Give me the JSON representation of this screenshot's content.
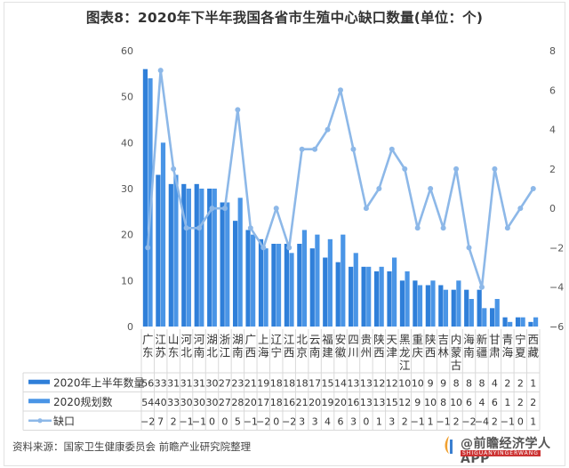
{
  "title": "图表8：2020年下半年我国各省市生殖中心缺口数量(单位：个)",
  "source": "资料来源：国家卫生健康委员会 前瞻产业研究院整理",
  "brand": {
    "text": "@前瞻经济学人APP",
    "sub": "SHIGUANYINGERWANG"
  },
  "colors": {
    "bar_h1": "#2f7fd9",
    "bar_plan": "#4a95e6",
    "line_gap": "#8db8e8",
    "grid": "#d9d9d9"
  },
  "legend": {
    "h1": "2020年上半年数量",
    "plan": "2020规划数",
    "gap": "缺口"
  },
  "chart_data": {
    "type": "bar+line",
    "title": "图表8：2020年下半年我国各省市生殖中心缺口数量(单位：个)",
    "categories": [
      "广东",
      "江苏",
      "山东",
      "河北",
      "河南",
      "湖北",
      "浙江",
      "湖南",
      "广西",
      "上海",
      "辽宁",
      "江西",
      "北京",
      "云南",
      "福建",
      "安徽",
      "四川",
      "贵州",
      "陕西",
      "天津",
      "黑龙江",
      "重庆",
      "陕西",
      "吉林",
      "内蒙古",
      "海南",
      "新疆",
      "甘肃",
      "青海",
      "宁夏",
      "西藏"
    ],
    "series": [
      {
        "name": "2020年上半年数量",
        "type": "bar",
        "axis": "left",
        "values": [
          56,
          33,
          31,
          31,
          31,
          30,
          27,
          23,
          21,
          19,
          18,
          18,
          18,
          17,
          15,
          14,
          13,
          13,
          12,
          12,
          10,
          10,
          9,
          9,
          8,
          8,
          8,
          4,
          2,
          2,
          1
        ]
      },
      {
        "name": "2020规划数",
        "type": "bar",
        "axis": "left",
        "values": [
          54,
          40,
          33,
          30,
          30,
          30,
          27,
          28,
          20,
          17,
          18,
          16,
          21,
          20,
          19,
          20,
          16,
          13,
          13,
          15,
          12,
          9,
          10,
          8,
          10,
          6,
          4,
          6,
          1,
          2,
          2
        ]
      },
      {
        "name": "缺口",
        "type": "line",
        "axis": "right",
        "values": [
          -2,
          7,
          2,
          -1,
          -1,
          0,
          0,
          5,
          -1,
          -2,
          0,
          -2,
          3,
          3,
          4,
          6,
          3,
          0,
          1,
          3,
          2,
          -1,
          1,
          -1,
          2,
          -2,
          -4,
          2,
          -1,
          0,
          1
        ]
      }
    ],
    "left_axis": {
      "ylim": [
        0,
        60
      ],
      "ticks": [
        0,
        10,
        20,
        30,
        40,
        50,
        60
      ]
    },
    "right_axis": {
      "ylim": [
        -6,
        8
      ],
      "ticks": [
        -6,
        -4,
        -2,
        0,
        2,
        4,
        6,
        8
      ]
    },
    "legend_position": "bottom-left data table",
    "grid": false
  }
}
